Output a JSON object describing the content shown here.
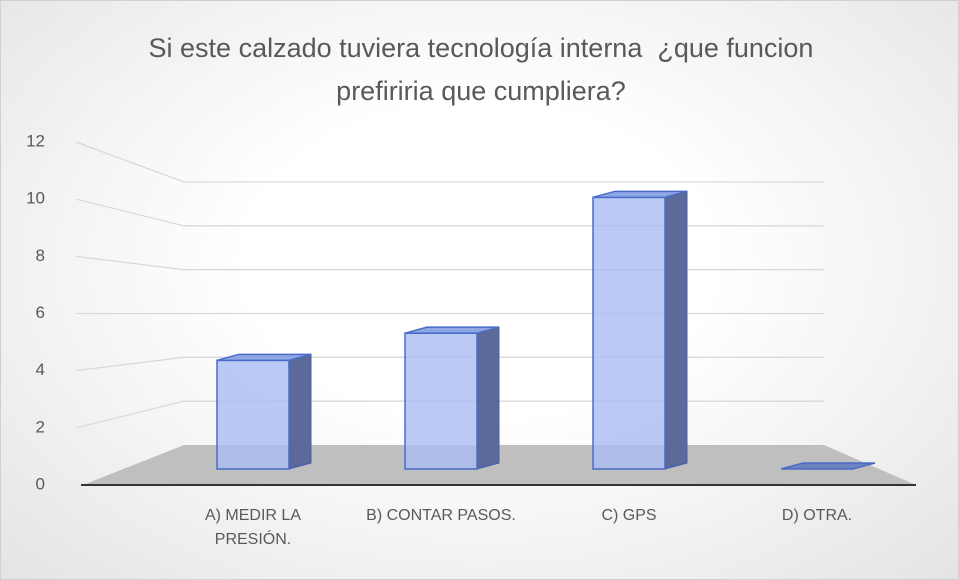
{
  "chart_data": {
    "type": "bar3d",
    "title": "Si este calzado tuviera tecnología interna  ¿que funcion prefiriria que cumpliera?",
    "categories": [
      "A) MEDIR LA PRESIÓN.",
      "B) CONTAR PASOS.",
      "C) GPS",
      "D) OTRA."
    ],
    "values": [
      4,
      5,
      10,
      0
    ],
    "color": "#a9bdf2",
    "ylim": [
      0,
      12
    ],
    "yticks": [
      0,
      2,
      4,
      6,
      8,
      10,
      12
    ],
    "grid": true
  }
}
